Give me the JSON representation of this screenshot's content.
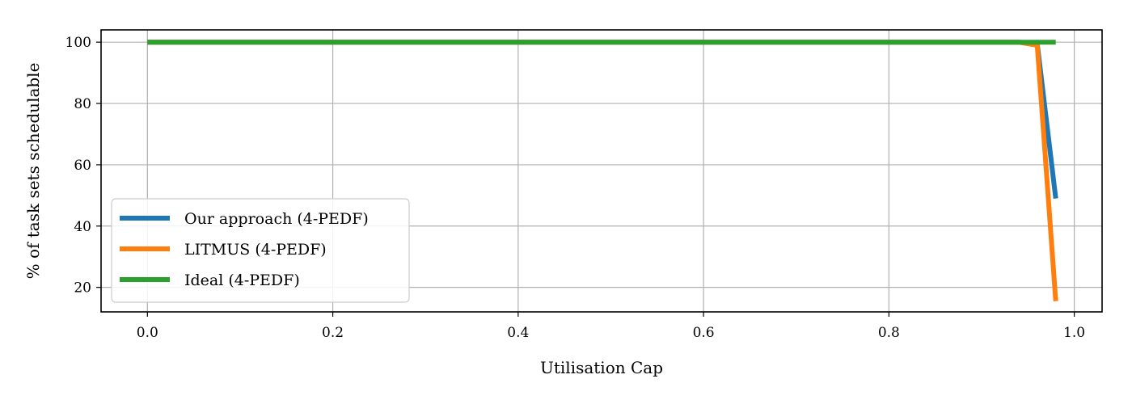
{
  "chart_data": {
    "type": "line",
    "xlabel": "Utilisation Cap",
    "ylabel": "% of task sets schedulable",
    "xlim": [
      -0.05,
      1.03
    ],
    "ylim": [
      12,
      104
    ],
    "xticks": [
      0.0,
      0.2,
      0.4,
      0.6,
      0.8,
      1.0
    ],
    "xtick_labels": [
      "0.0",
      "0.2",
      "0.4",
      "0.6",
      "0.8",
      "1.0"
    ],
    "yticks": [
      20,
      40,
      60,
      80,
      100
    ],
    "ytick_labels": [
      "20",
      "40",
      "60",
      "80",
      "100"
    ],
    "grid": true,
    "legend_position": "lower-left",
    "series": [
      {
        "name": "Our approach (4-PEDF)",
        "color": "#1f77b4",
        "x": [
          0.0,
          0.94,
          0.96,
          0.98
        ],
        "y": [
          100,
          100,
          99.5,
          49
        ]
      },
      {
        "name": "LITMUS (4-PEDF)",
        "color": "#ff7f0e",
        "x": [
          0.0,
          0.94,
          0.96,
          0.98
        ],
        "y": [
          100,
          100,
          99,
          15.5
        ]
      },
      {
        "name": "Ideal (4-PEDF)",
        "color": "#2ca02c",
        "x": [
          0.0,
          0.94,
          0.96,
          0.98
        ],
        "y": [
          100,
          100,
          100,
          100
        ]
      }
    ]
  }
}
